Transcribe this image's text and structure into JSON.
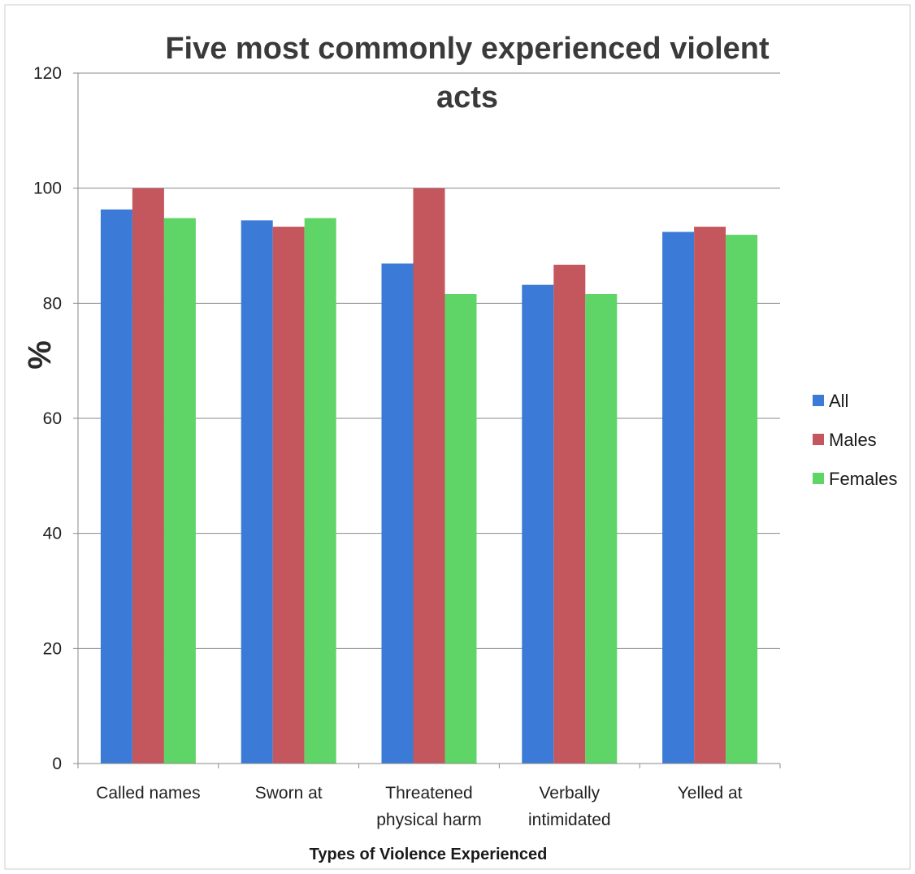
{
  "chart_data": {
    "type": "bar",
    "title_line1": "Five most commonly experienced violent",
    "title_line2": "acts",
    "xlabel": "Types of Violence Experienced",
    "ylabel": "%",
    "ylim": [
      0,
      120
    ],
    "yticks": [
      0,
      20,
      40,
      60,
      80,
      100,
      120
    ],
    "grid": true,
    "legend_position": "right",
    "categories": [
      [
        "Called names"
      ],
      [
        "Sworn at"
      ],
      [
        "Threatened",
        "physical harm"
      ],
      [
        "Verbally",
        "intimidated"
      ],
      [
        "Yelled at"
      ]
    ],
    "series": [
      {
        "name": "All",
        "color": "#3b7ad6",
        "values": [
          96.3,
          94.4,
          86.9,
          83.2,
          92.4
        ]
      },
      {
        "name": "Males",
        "color": "#c4565e",
        "values": [
          100,
          93.3,
          100,
          86.7,
          93.3
        ]
      },
      {
        "name": "Females",
        "color": "#5fd467",
        "values": [
          94.8,
          94.8,
          81.6,
          81.6,
          91.9
        ]
      }
    ]
  }
}
